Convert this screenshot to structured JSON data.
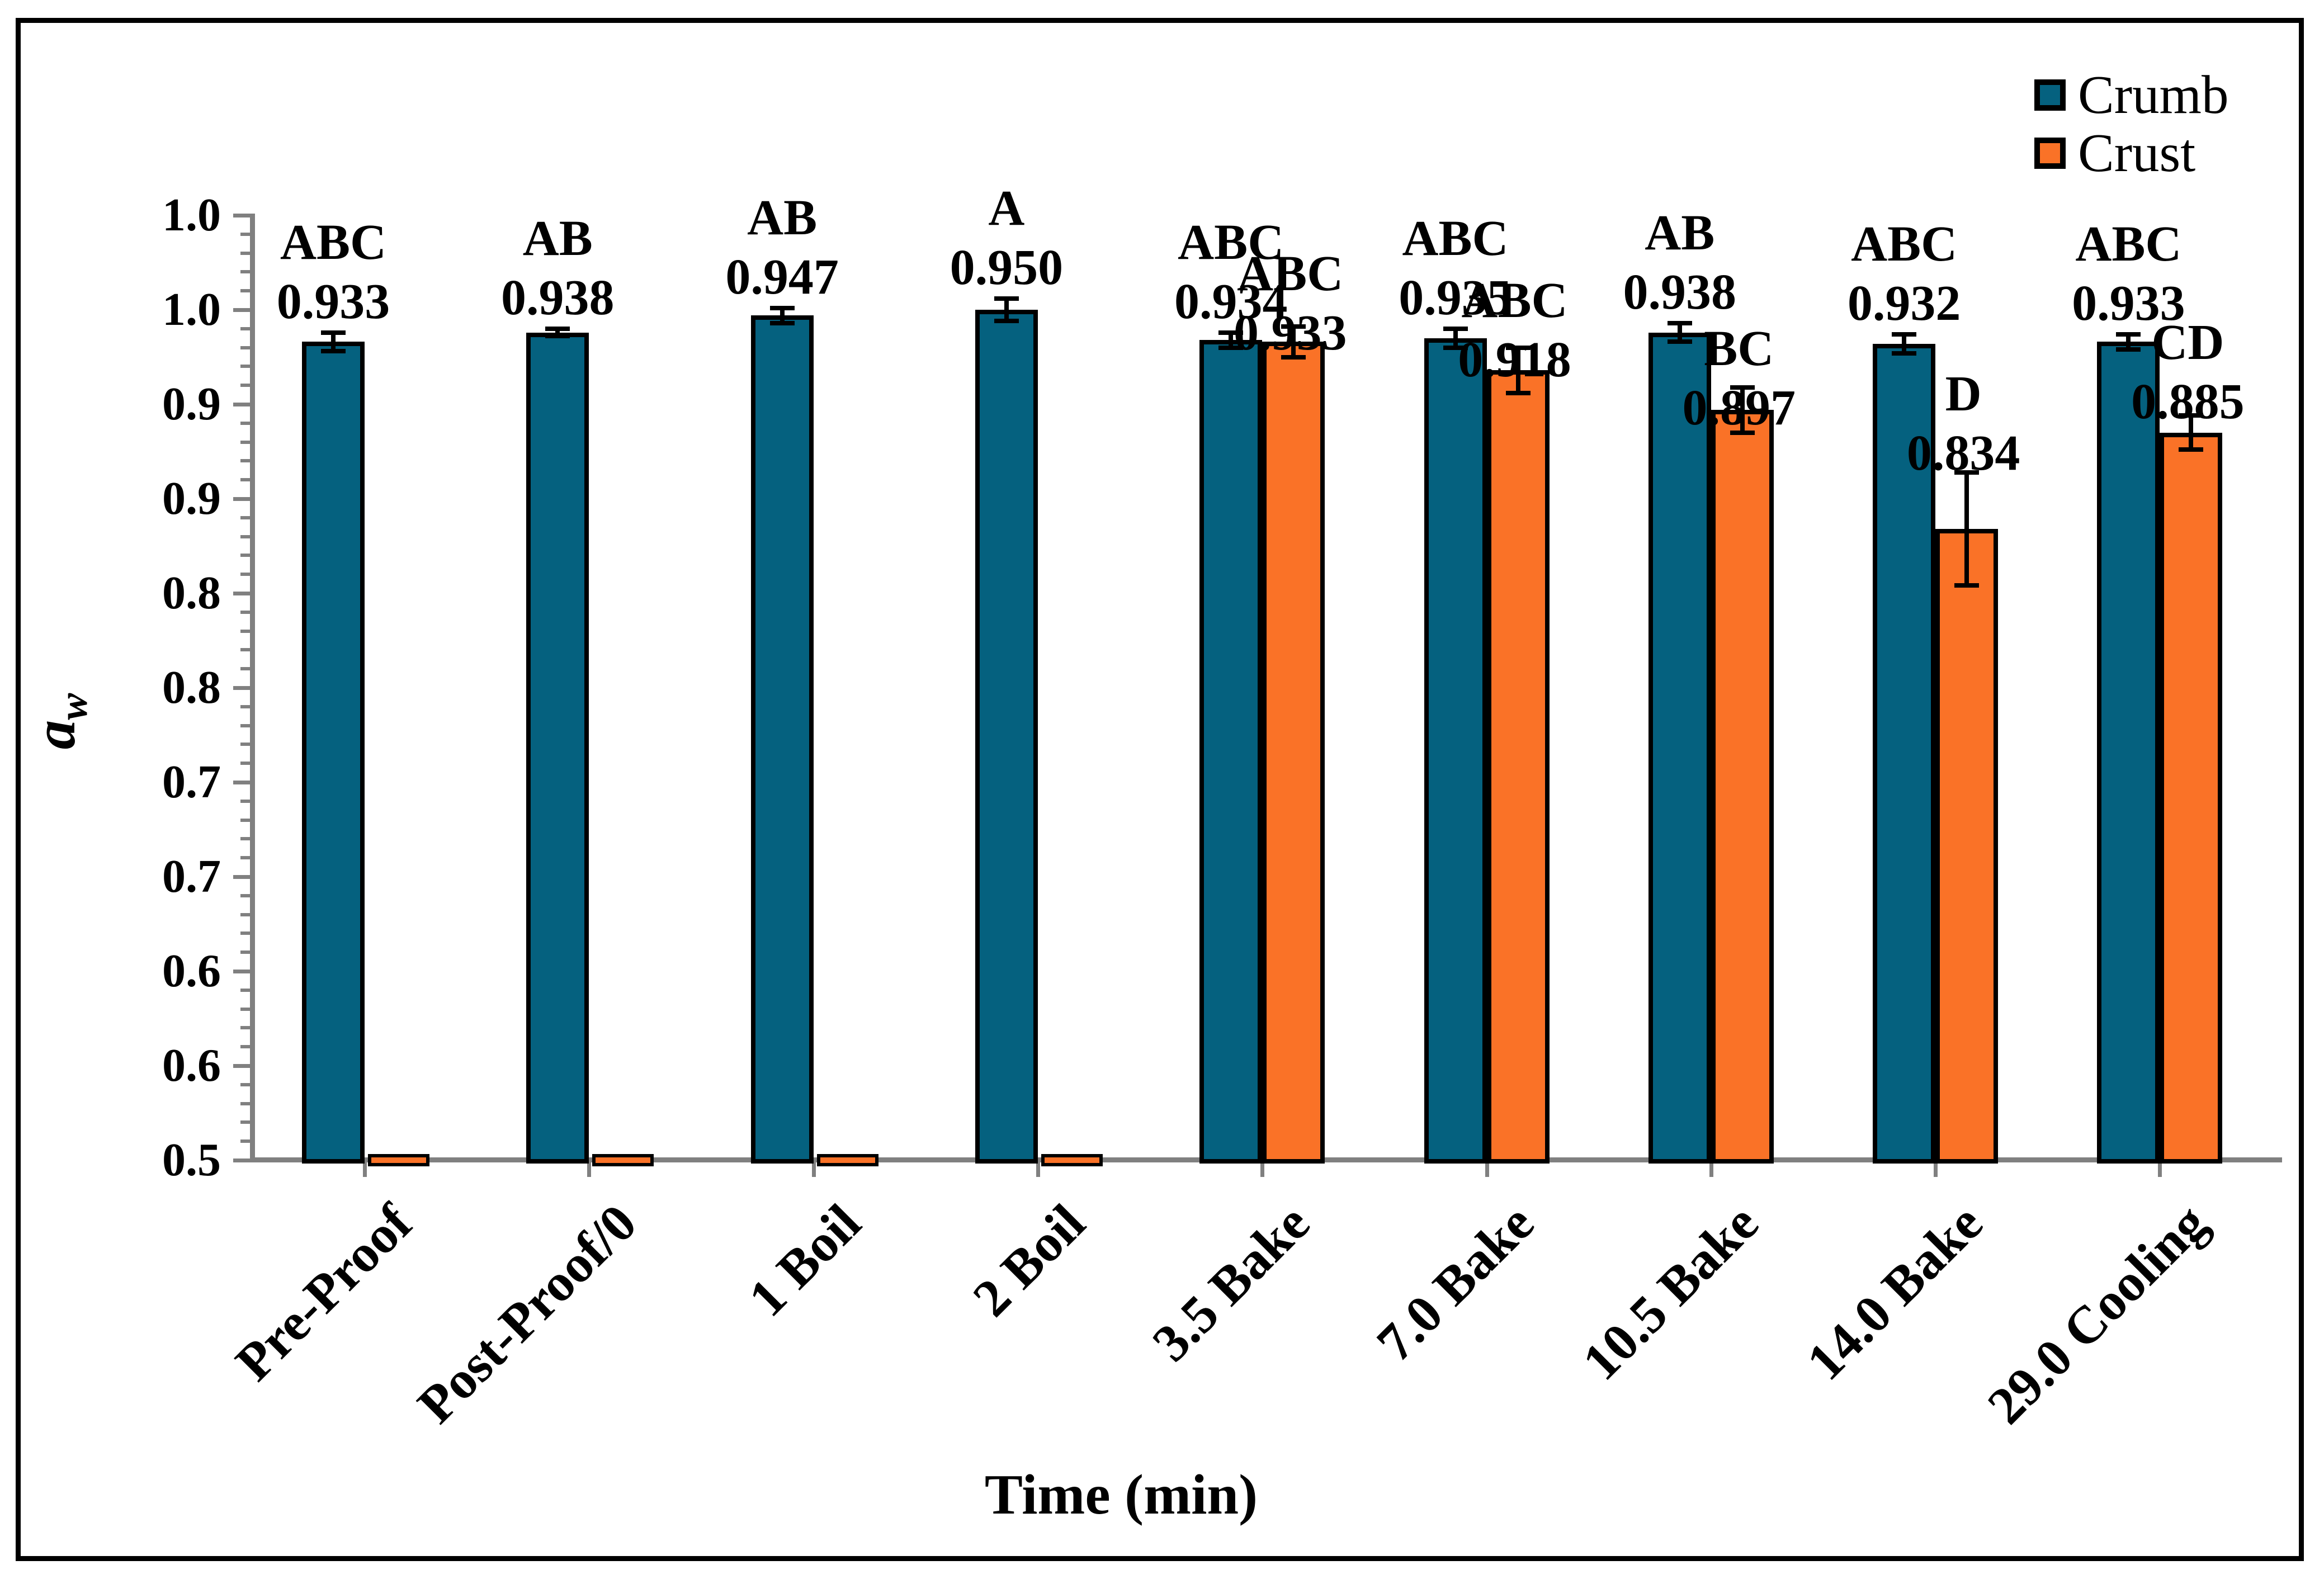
{
  "chart_data": {
    "type": "bar",
    "xlabel": "Time (min)",
    "ylabel_main": "a",
    "ylabel_sub": "w",
    "ylim": [
      0.5,
      1.0
    ],
    "y_major_tick_step": 0.05,
    "y_minor_tick_step": 0.01,
    "y_tick_labels_top_to_bottom": [
      "1.0",
      "1.0",
      "0.9",
      "0.9",
      "0.8",
      "0.8",
      "0.7",
      "0.7",
      "0.6",
      "0.6",
      "0.5"
    ],
    "grid": "off",
    "legend_position": "top-right-inside",
    "categories": [
      "Pre-Proof",
      "Post-Proof/0",
      "1 Boil",
      "2 Boil",
      "3.5 Bake",
      "7.0 Bake",
      "10.5 Bake",
      "14.0 Bake",
      "29.0 Cooling"
    ],
    "series": [
      {
        "name": "Crumb",
        "color": "#05617F",
        "letters": [
          "ABC",
          "AB",
          "AB",
          "A",
          "ABC",
          "ABC",
          "AB",
          "ABC",
          "ABC"
        ],
        "values": [
          0.933,
          0.938,
          0.947,
          0.95,
          0.934,
          0.935,
          0.938,
          0.932,
          0.933
        ],
        "value_labels": [
          "0.933",
          "0.938",
          "0.947",
          "0.950",
          "0.934",
          "0.935",
          "0.938",
          "0.932",
          "0.933"
        ],
        "errors": [
          0.005,
          0.002,
          0.004,
          0.006,
          0.004,
          0.005,
          0.005,
          0.005,
          0.004
        ]
      },
      {
        "name": "Crust",
        "color": "#FA7227",
        "letters": [
          null,
          null,
          null,
          null,
          "ABC",
          "ABC",
          "BC",
          "D",
          "CD"
        ],
        "values": [
          null,
          null,
          null,
          null,
          0.933,
          0.918,
          0.897,
          0.834,
          0.885
        ],
        "value_labels": [
          null,
          null,
          null,
          null,
          "0.933",
          "0.918",
          "0.897",
          "0.834",
          "0.885"
        ],
        "errors": [
          null,
          null,
          null,
          null,
          0.008,
          0.012,
          0.012,
          0.03,
          0.009
        ]
      }
    ]
  },
  "colors": {
    "axis": "#808080",
    "error_bar": "#000000",
    "text": "#000000",
    "background": "#ffffff"
  }
}
